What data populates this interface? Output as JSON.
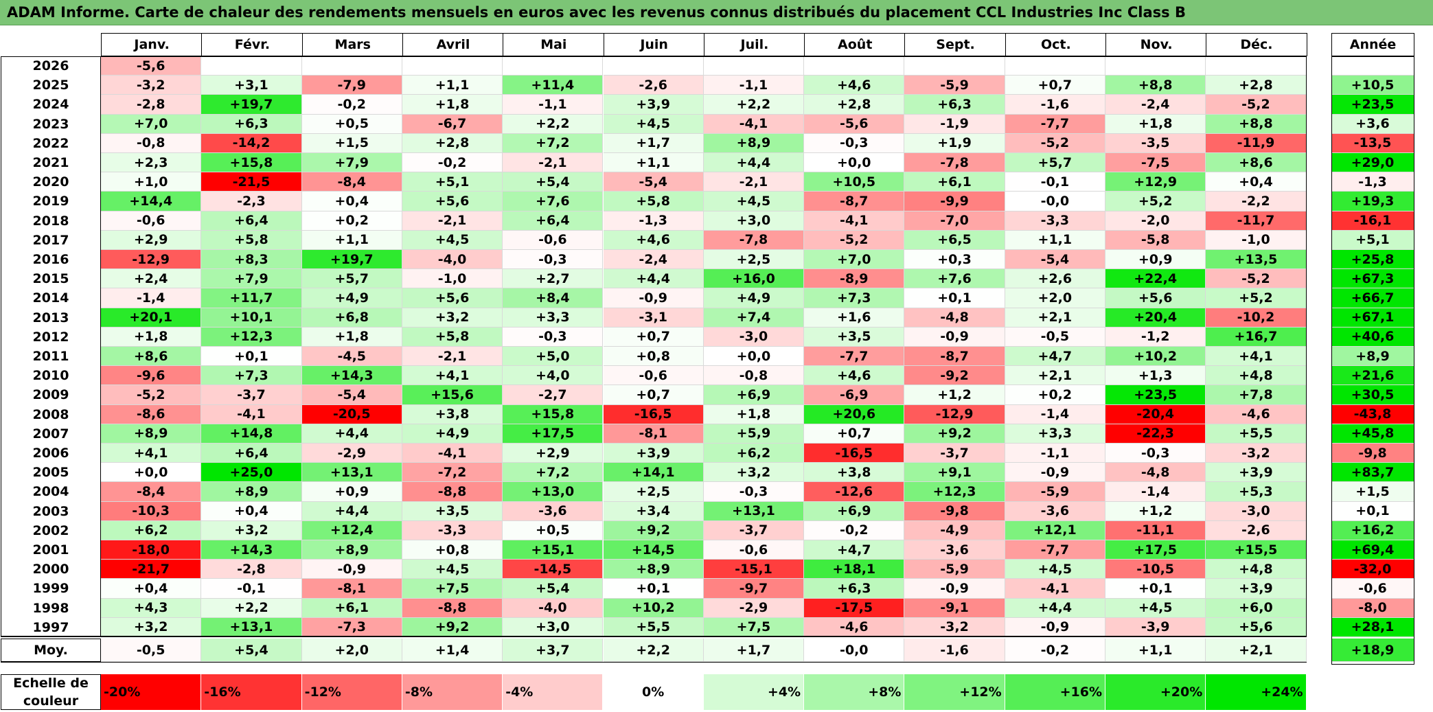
{
  "title": "ADAM Informe. Carte de chaleur des rendements mensuels en euros avec les revenus connus distribués du placement CCL Industries Inc Class B",
  "chart_data": {
    "type": "heatmap",
    "months": [
      "Janv.",
      "Févr.",
      "Mars",
      "Avril",
      "Mai",
      "Juin",
      "Juil.",
      "Août",
      "Sept.",
      "Oct.",
      "Nov.",
      "Déc."
    ],
    "annual_header": "Année",
    "rows": [
      {
        "year": "2026",
        "values": [
          "-5,6",
          "",
          "",
          "",
          "",
          "",
          "",
          "",
          "",
          "",
          "",
          ""
        ],
        "annual": ""
      },
      {
        "year": "2025",
        "values": [
          "-3,2",
          "+3,1",
          "-7,9",
          "+1,1",
          "+11,4",
          "-2,6",
          "-1,1",
          "+4,6",
          "-5,9",
          "+0,7",
          "+8,8",
          "+2,8"
        ],
        "annual": "+10,5"
      },
      {
        "year": "2024",
        "values": [
          "-2,8",
          "+19,7",
          "-0,2",
          "+1,8",
          "-1,1",
          "+3,9",
          "+2,2",
          "+2,8",
          "+6,3",
          "-1,6",
          "-2,4",
          "-5,2"
        ],
        "annual": "+23,5"
      },
      {
        "year": "2023",
        "values": [
          "+7,0",
          "+6,3",
          "+0,5",
          "-6,7",
          "+2,2",
          "+4,5",
          "-4,1",
          "-5,6",
          "-1,9",
          "-7,7",
          "+1,8",
          "+8,8"
        ],
        "annual": "+3,6"
      },
      {
        "year": "2022",
        "values": [
          "-0,8",
          "-14,2",
          "+1,5",
          "+2,8",
          "+7,2",
          "+1,7",
          "+8,9",
          "-0,3",
          "+1,9",
          "-5,2",
          "-3,5",
          "-11,9"
        ],
        "annual": "-13,5"
      },
      {
        "year": "2021",
        "values": [
          "+2,3",
          "+15,8",
          "+7,9",
          "-0,2",
          "-2,1",
          "+1,1",
          "+4,4",
          "+0,0",
          "-7,8",
          "+5,7",
          "-7,5",
          "+8,6"
        ],
        "annual": "+29,0"
      },
      {
        "year": "2020",
        "values": [
          "+1,0",
          "-21,5",
          "-8,4",
          "+5,1",
          "+5,4",
          "-5,4",
          "-2,1",
          "+10,5",
          "+6,1",
          "-0,1",
          "+12,9",
          "+0,4"
        ],
        "annual": "-1,3"
      },
      {
        "year": "2019",
        "values": [
          "+14,4",
          "-2,3",
          "+0,4",
          "+5,6",
          "+7,6",
          "+5,8",
          "+4,5",
          "-8,7",
          "-9,9",
          "-0,0",
          "+5,2",
          "-2,2"
        ],
        "annual": "+19,3"
      },
      {
        "year": "2018",
        "values": [
          "-0,6",
          "+6,4",
          "+0,2",
          "-2,1",
          "+6,4",
          "-1,3",
          "+3,0",
          "-4,1",
          "-7,0",
          "-3,3",
          "-2,0",
          "-11,7"
        ],
        "annual": "-16,1"
      },
      {
        "year": "2017",
        "values": [
          "+2,9",
          "+5,8",
          "+1,1",
          "+4,5",
          "-0,6",
          "+4,6",
          "-7,8",
          "-5,2",
          "+6,5",
          "+1,1",
          "-5,8",
          "-1,0"
        ],
        "annual": "+5,1"
      },
      {
        "year": "2016",
        "values": [
          "-12,9",
          "+8,3",
          "+19,7",
          "-4,0",
          "-0,3",
          "-2,4",
          "+2,5",
          "+7,0",
          "+0,3",
          "-5,4",
          "+0,9",
          "+13,5"
        ],
        "annual": "+25,8"
      },
      {
        "year": "2015",
        "values": [
          "+2,4",
          "+7,9",
          "+5,7",
          "-1,0",
          "+2,7",
          "+4,4",
          "+16,0",
          "-8,9",
          "+7,6",
          "+2,6",
          "+22,4",
          "-5,2"
        ],
        "annual": "+67,3"
      },
      {
        "year": "2014",
        "values": [
          "-1,4",
          "+11,7",
          "+4,9",
          "+5,6",
          "+8,4",
          "-0,9",
          "+4,9",
          "+7,3",
          "+0,1",
          "+2,0",
          "+5,6",
          "+5,2"
        ],
        "annual": "+66,7"
      },
      {
        "year": "2013",
        "values": [
          "+20,1",
          "+10,1",
          "+6,8",
          "+3,2",
          "+3,3",
          "-3,1",
          "+7,4",
          "+1,6",
          "-4,8",
          "+2,1",
          "+20,4",
          "-10,2"
        ],
        "annual": "+67,1"
      },
      {
        "year": "2012",
        "values": [
          "+1,8",
          "+12,3",
          "+1,8",
          "+5,8",
          "-0,3",
          "+0,7",
          "-3,0",
          "+3,5",
          "-0,9",
          "-0,5",
          "-1,2",
          "+16,7"
        ],
        "annual": "+40,6"
      },
      {
        "year": "2011",
        "values": [
          "+8,6",
          "+0,1",
          "-4,5",
          "-2,1",
          "+5,0",
          "+0,8",
          "+0,0",
          "-7,7",
          "-8,7",
          "+4,7",
          "+10,2",
          "+4,1"
        ],
        "annual": "+8,9"
      },
      {
        "year": "2010",
        "values": [
          "-9,6",
          "+7,3",
          "+14,3",
          "+4,1",
          "+4,0",
          "-0,6",
          "-0,8",
          "+4,6",
          "-9,2",
          "+2,1",
          "+1,3",
          "+4,8"
        ],
        "annual": "+21,6"
      },
      {
        "year": "2009",
        "values": [
          "-5,2",
          "-3,7",
          "-5,4",
          "+15,6",
          "-2,7",
          "+0,7",
          "+6,9",
          "-6,9",
          "+1,2",
          "+0,2",
          "+23,5",
          "+7,8"
        ],
        "annual": "+30,5"
      },
      {
        "year": "2008",
        "values": [
          "-8,6",
          "-4,1",
          "-20,5",
          "+3,8",
          "+15,8",
          "-16,5",
          "+1,8",
          "+20,6",
          "-12,9",
          "-1,4",
          "-20,4",
          "-4,6"
        ],
        "annual": "-43,8"
      },
      {
        "year": "2007",
        "values": [
          "+8,9",
          "+14,8",
          "+4,4",
          "+4,9",
          "+17,5",
          "-8,1",
          "+5,9",
          "+0,7",
          "+9,2",
          "+3,3",
          "-22,3",
          "+5,5"
        ],
        "annual": "+45,8"
      },
      {
        "year": "2006",
        "values": [
          "+4,1",
          "+6,4",
          "-2,9",
          "-4,1",
          "+2,9",
          "+3,9",
          "+6,2",
          "-16,5",
          "-3,7",
          "-1,1",
          "-0,3",
          "-3,2"
        ],
        "annual": "-9,8"
      },
      {
        "year": "2005",
        "values": [
          "+0,0",
          "+25,0",
          "+13,1",
          "-7,2",
          "+7,2",
          "+14,1",
          "+3,2",
          "+3,8",
          "+9,1",
          "-0,9",
          "-4,8",
          "+3,9"
        ],
        "annual": "+83,7"
      },
      {
        "year": "2004",
        "values": [
          "-8,4",
          "+8,9",
          "+0,9",
          "-8,8",
          "+13,0",
          "+2,5",
          "-0,3",
          "-12,6",
          "+12,3",
          "-5,9",
          "-1,4",
          "+5,3"
        ],
        "annual": "+1,5"
      },
      {
        "year": "2003",
        "values": [
          "-10,3",
          "+0,4",
          "+4,4",
          "+3,5",
          "-3,6",
          "+3,4",
          "+13,1",
          "+6,9",
          "-9,8",
          "-3,6",
          "+1,2",
          "-3,0"
        ],
        "annual": "+0,1"
      },
      {
        "year": "2002",
        "values": [
          "+6,2",
          "+3,2",
          "+12,4",
          "-3,3",
          "+0,5",
          "+9,2",
          "-3,7",
          "-0,2",
          "-4,9",
          "+12,1",
          "-11,1",
          "-2,6"
        ],
        "annual": "+16,2"
      },
      {
        "year": "2001",
        "values": [
          "-18,0",
          "+14,3",
          "+8,9",
          "+0,8",
          "+15,1",
          "+14,5",
          "-0,6",
          "+4,7",
          "-3,6",
          "-7,7",
          "+17,5",
          "+15,5"
        ],
        "annual": "+69,4"
      },
      {
        "year": "2000",
        "values": [
          "-21,7",
          "-2,8",
          "-0,9",
          "+4,5",
          "-14,5",
          "+8,9",
          "-15,1",
          "+18,1",
          "-5,9",
          "+4,5",
          "-10,5",
          "+4,8"
        ],
        "annual": "-32,0"
      },
      {
        "year": "1999",
        "values": [
          "+0,4",
          "-0,1",
          "-8,1",
          "+7,5",
          "+5,4",
          "+0,1",
          "-9,7",
          "+6,3",
          "-0,9",
          "-4,1",
          "+0,1",
          "+3,9"
        ],
        "annual": "-0,6"
      },
      {
        "year": "1998",
        "values": [
          "+4,3",
          "+2,2",
          "+6,1",
          "-8,8",
          "-4,0",
          "+10,2",
          "-2,9",
          "-17,5",
          "-9,1",
          "+4,4",
          "+4,5",
          "+6,0"
        ],
        "annual": "-8,0"
      },
      {
        "year": "1997",
        "values": [
          "+3,2",
          "+13,1",
          "-7,3",
          "+9,2",
          "+3,0",
          "+5,5",
          "+7,5",
          "-4,6",
          "-3,2",
          "-0,9",
          "-3,9",
          "+5,6"
        ],
        "annual": "+28,1"
      }
    ],
    "average": {
      "label": "Moy.",
      "values": [
        "-0,5",
        "+5,4",
        "+2,0",
        "+1,4",
        "+3,7",
        "+2,2",
        "+1,7",
        "-0,0",
        "-1,6",
        "-0,2",
        "+1,1",
        "+2,1"
      ],
      "annual": "+18,9"
    },
    "scale": {
      "label_line1": "Echelle de",
      "label_line2": "couleur",
      "steps": [
        "-20%",
        "-16%",
        "-12%",
        "-8%",
        "-4%",
        "0%",
        "+4%",
        "+8%",
        "+12%",
        "+16%",
        "+20%",
        "+24%"
      ],
      "step_values": [
        -20,
        -16,
        -12,
        -8,
        -4,
        0,
        4,
        8,
        12,
        16,
        20,
        24
      ]
    },
    "colors": {
      "negative": "#ff0000",
      "positive": "#00e600",
      "neutral": "#ffffff",
      "title_bar": "#7cc576"
    }
  }
}
